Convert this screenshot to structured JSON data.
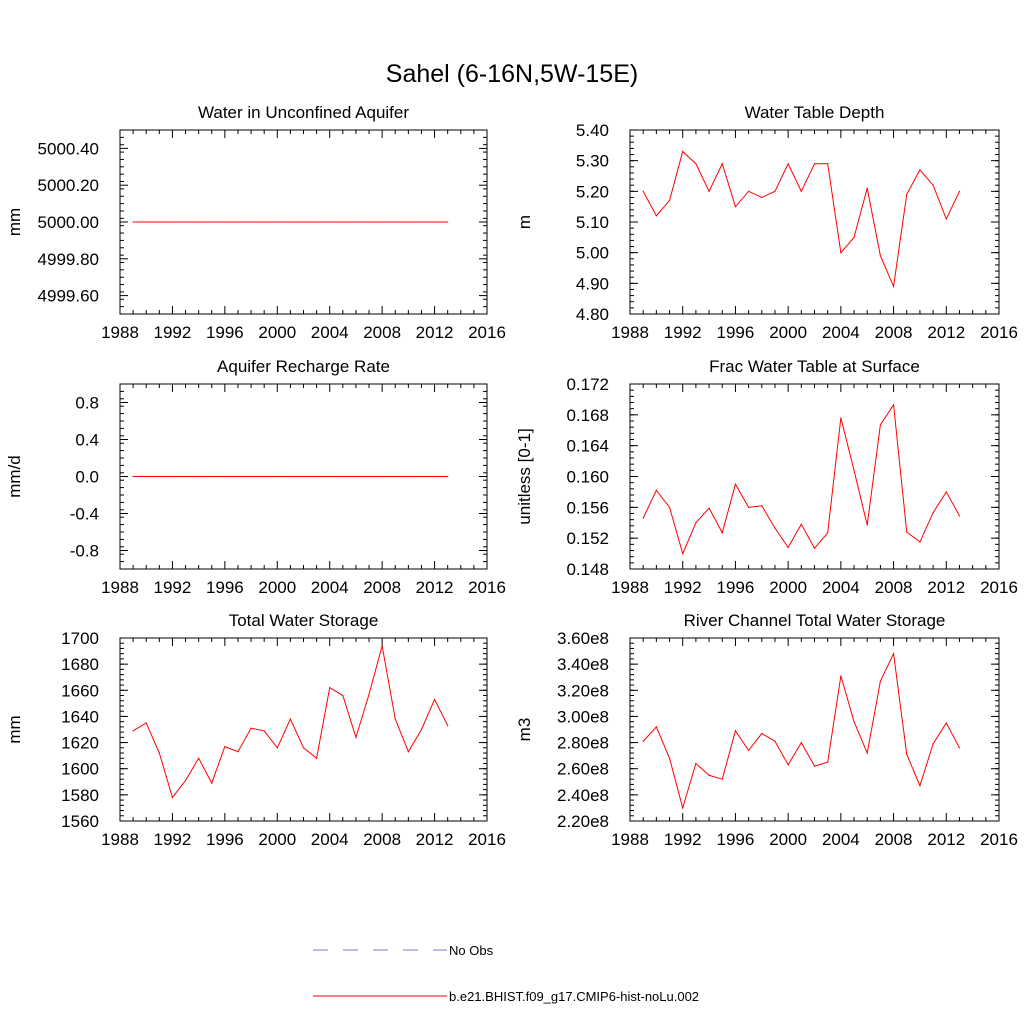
{
  "figure": {
    "title": "Sahel (6-16N,5W-15E)"
  },
  "legend": {
    "items": [
      {
        "label": "No Obs",
        "color": "#7b7bbf",
        "style": "dashed"
      },
      {
        "label": "b.e21.BHIST.f09_g17.CMIP6-hist-noLu.002",
        "color": "#ff0000",
        "style": "solid"
      }
    ]
  },
  "chart_data": [
    {
      "type": "line",
      "title": "Water in Unconfined Aquifer",
      "ylabel": "mm",
      "xlim": [
        1988,
        2016
      ],
      "xticks": [
        "1988",
        "1992",
        "1996",
        "2000",
        "2004",
        "2008",
        "2012",
        "2016"
      ],
      "ylim": [
        4999.5,
        5000.5
      ],
      "yticks": [
        "4999.60",
        "4999.80",
        "5000.00",
        "5000.20",
        "5000.40"
      ],
      "x": [
        1989,
        1990,
        1991,
        1992,
        1993,
        1994,
        1995,
        1996,
        1997,
        1998,
        1999,
        2000,
        2001,
        2002,
        2003,
        2004,
        2005,
        2006,
        2007,
        2008,
        2009,
        2010,
        2011,
        2012,
        2013
      ],
      "series": [
        {
          "color": "#ff0000",
          "values": [
            5000,
            5000,
            5000,
            5000,
            5000,
            5000,
            5000,
            5000,
            5000,
            5000,
            5000,
            5000,
            5000,
            5000,
            5000,
            5000,
            5000,
            5000,
            5000,
            5000,
            5000,
            5000,
            5000,
            5000,
            5000
          ]
        }
      ]
    },
    {
      "type": "line",
      "title": "Water Table Depth",
      "ylabel": "m",
      "xlim": [
        1988,
        2016
      ],
      "xticks": [
        "1988",
        "1992",
        "1996",
        "2000",
        "2004",
        "2008",
        "2012",
        "2016"
      ],
      "ylim": [
        4.8,
        5.4
      ],
      "yticks": [
        "4.80",
        "4.90",
        "5.00",
        "5.10",
        "5.20",
        "5.30",
        "5.40"
      ],
      "x": [
        1989,
        1990,
        1991,
        1992,
        1993,
        1994,
        1995,
        1996,
        1997,
        1998,
        1999,
        2000,
        2001,
        2002,
        2003,
        2004,
        2005,
        2006,
        2007,
        2008,
        2009,
        2010,
        2011,
        2012,
        2013
      ],
      "series": [
        {
          "color": "#ff0000",
          "values": [
            5.2,
            5.12,
            5.17,
            5.33,
            5.29,
            5.2,
            5.29,
            5.15,
            5.2,
            5.18,
            5.2,
            5.29,
            5.2,
            5.29,
            5.29,
            5.0,
            5.05,
            5.21,
            4.99,
            4.89,
            5.19,
            5.27,
            5.22,
            5.11,
            5.2
          ]
        }
      ]
    },
    {
      "type": "line",
      "title": "Aquifer Recharge Rate",
      "ylabel": "mm/d",
      "xlim": [
        1988,
        2016
      ],
      "xticks": [
        "1988",
        "1992",
        "1996",
        "2000",
        "2004",
        "2008",
        "2012",
        "2016"
      ],
      "ylim": [
        -1.0,
        1.0
      ],
      "yticks": [
        "-0.8",
        "-0.4",
        "0.0",
        "0.4",
        "0.8"
      ],
      "x": [
        1989,
        1990,
        1991,
        1992,
        1993,
        1994,
        1995,
        1996,
        1997,
        1998,
        1999,
        2000,
        2001,
        2002,
        2003,
        2004,
        2005,
        2006,
        2007,
        2008,
        2009,
        2010,
        2011,
        2012,
        2013
      ],
      "series": [
        {
          "color": "#ff0000",
          "values": [
            0,
            0,
            0,
            0,
            0,
            0,
            0,
            0,
            0,
            0,
            0,
            0,
            0,
            0,
            0,
            0,
            0,
            0,
            0,
            0,
            0,
            0,
            0,
            0,
            0
          ]
        }
      ]
    },
    {
      "type": "line",
      "title": "Frac Water Table at Surface",
      "ylabel": "unitless [0-1]",
      "xlim": [
        1988,
        2016
      ],
      "xticks": [
        "1988",
        "1992",
        "1996",
        "2000",
        "2004",
        "2008",
        "2012",
        "2016"
      ],
      "ylim": [
        0.148,
        0.172
      ],
      "yticks": [
        "0.148",
        "0.152",
        "0.156",
        "0.160",
        "0.164",
        "0.168",
        "0.172"
      ],
      "x": [
        1989,
        1990,
        1991,
        1992,
        1993,
        1994,
        1995,
        1996,
        1997,
        1998,
        1999,
        2000,
        2001,
        2002,
        2003,
        2004,
        2005,
        2006,
        2007,
        2008,
        2009,
        2010,
        2011,
        2012,
        2013
      ],
      "series": [
        {
          "color": "#ff0000",
          "values": [
            0.1546,
            0.1582,
            0.156,
            0.15,
            0.154,
            0.1559,
            0.1527,
            0.159,
            0.156,
            0.1562,
            0.1533,
            0.1508,
            0.1538,
            0.1507,
            0.1527,
            0.1676,
            0.1608,
            0.1537,
            0.1667,
            0.1693,
            0.1528,
            0.1515,
            0.1553,
            0.158,
            0.1549
          ]
        }
      ]
    },
    {
      "type": "line",
      "title": "Total Water Storage",
      "ylabel": "mm",
      "xlim": [
        1988,
        2016
      ],
      "xticks": [
        "1988",
        "1992",
        "1996",
        "2000",
        "2004",
        "2008",
        "2012",
        "2016"
      ],
      "ylim": [
        1560,
        1700
      ],
      "yticks": [
        "1560",
        "1580",
        "1600",
        "1620",
        "1640",
        "1660",
        "1680",
        "1700"
      ],
      "x": [
        1989,
        1990,
        1991,
        1992,
        1993,
        1994,
        1995,
        1996,
        1997,
        1998,
        1999,
        2000,
        2001,
        2002,
        2003,
        2004,
        2005,
        2006,
        2007,
        2008,
        2009,
        2010,
        2011,
        2012,
        2013
      ],
      "series": [
        {
          "color": "#ff0000",
          "values": [
            1629,
            1635,
            1612,
            1578,
            1591,
            1608,
            1589,
            1617,
            1613,
            1631,
            1629,
            1616,
            1638,
            1616,
            1608,
            1662,
            1656,
            1624,
            1657,
            1694,
            1638,
            1613,
            1630,
            1653,
            1633
          ]
        }
      ]
    },
    {
      "type": "line",
      "title": "River Channel Total Water Storage",
      "ylabel": "m3",
      "xlim": [
        1988,
        2016
      ],
      "xticks": [
        "1988",
        "1992",
        "1996",
        "2000",
        "2004",
        "2008",
        "2012",
        "2016"
      ],
      "ylim": [
        220000000,
        360000000
      ],
      "yticks": [
        "2.20e8",
        "2.40e8",
        "2.60e8",
        "2.80e8",
        "3.00e8",
        "3.20e8",
        "3.40e8",
        "3.60e8"
      ],
      "x": [
        1989,
        1990,
        1991,
        1992,
        1993,
        1994,
        1995,
        1996,
        1997,
        1998,
        1999,
        2000,
        2001,
        2002,
        2003,
        2004,
        2005,
        2006,
        2007,
        2008,
        2009,
        2010,
        2011,
        2012,
        2013
      ],
      "series": [
        {
          "color": "#ff0000",
          "values": [
            281000000,
            292000000,
            268000000,
            230000000,
            264000000,
            255000000,
            252000000,
            289000000,
            274000000,
            287000000,
            281000000,
            263000000,
            280000000,
            262000000,
            265000000,
            331000000,
            296000000,
            272000000,
            327000000,
            348000000,
            271000000,
            247000000,
            279000000,
            295000000,
            276000000
          ]
        }
      ]
    }
  ]
}
